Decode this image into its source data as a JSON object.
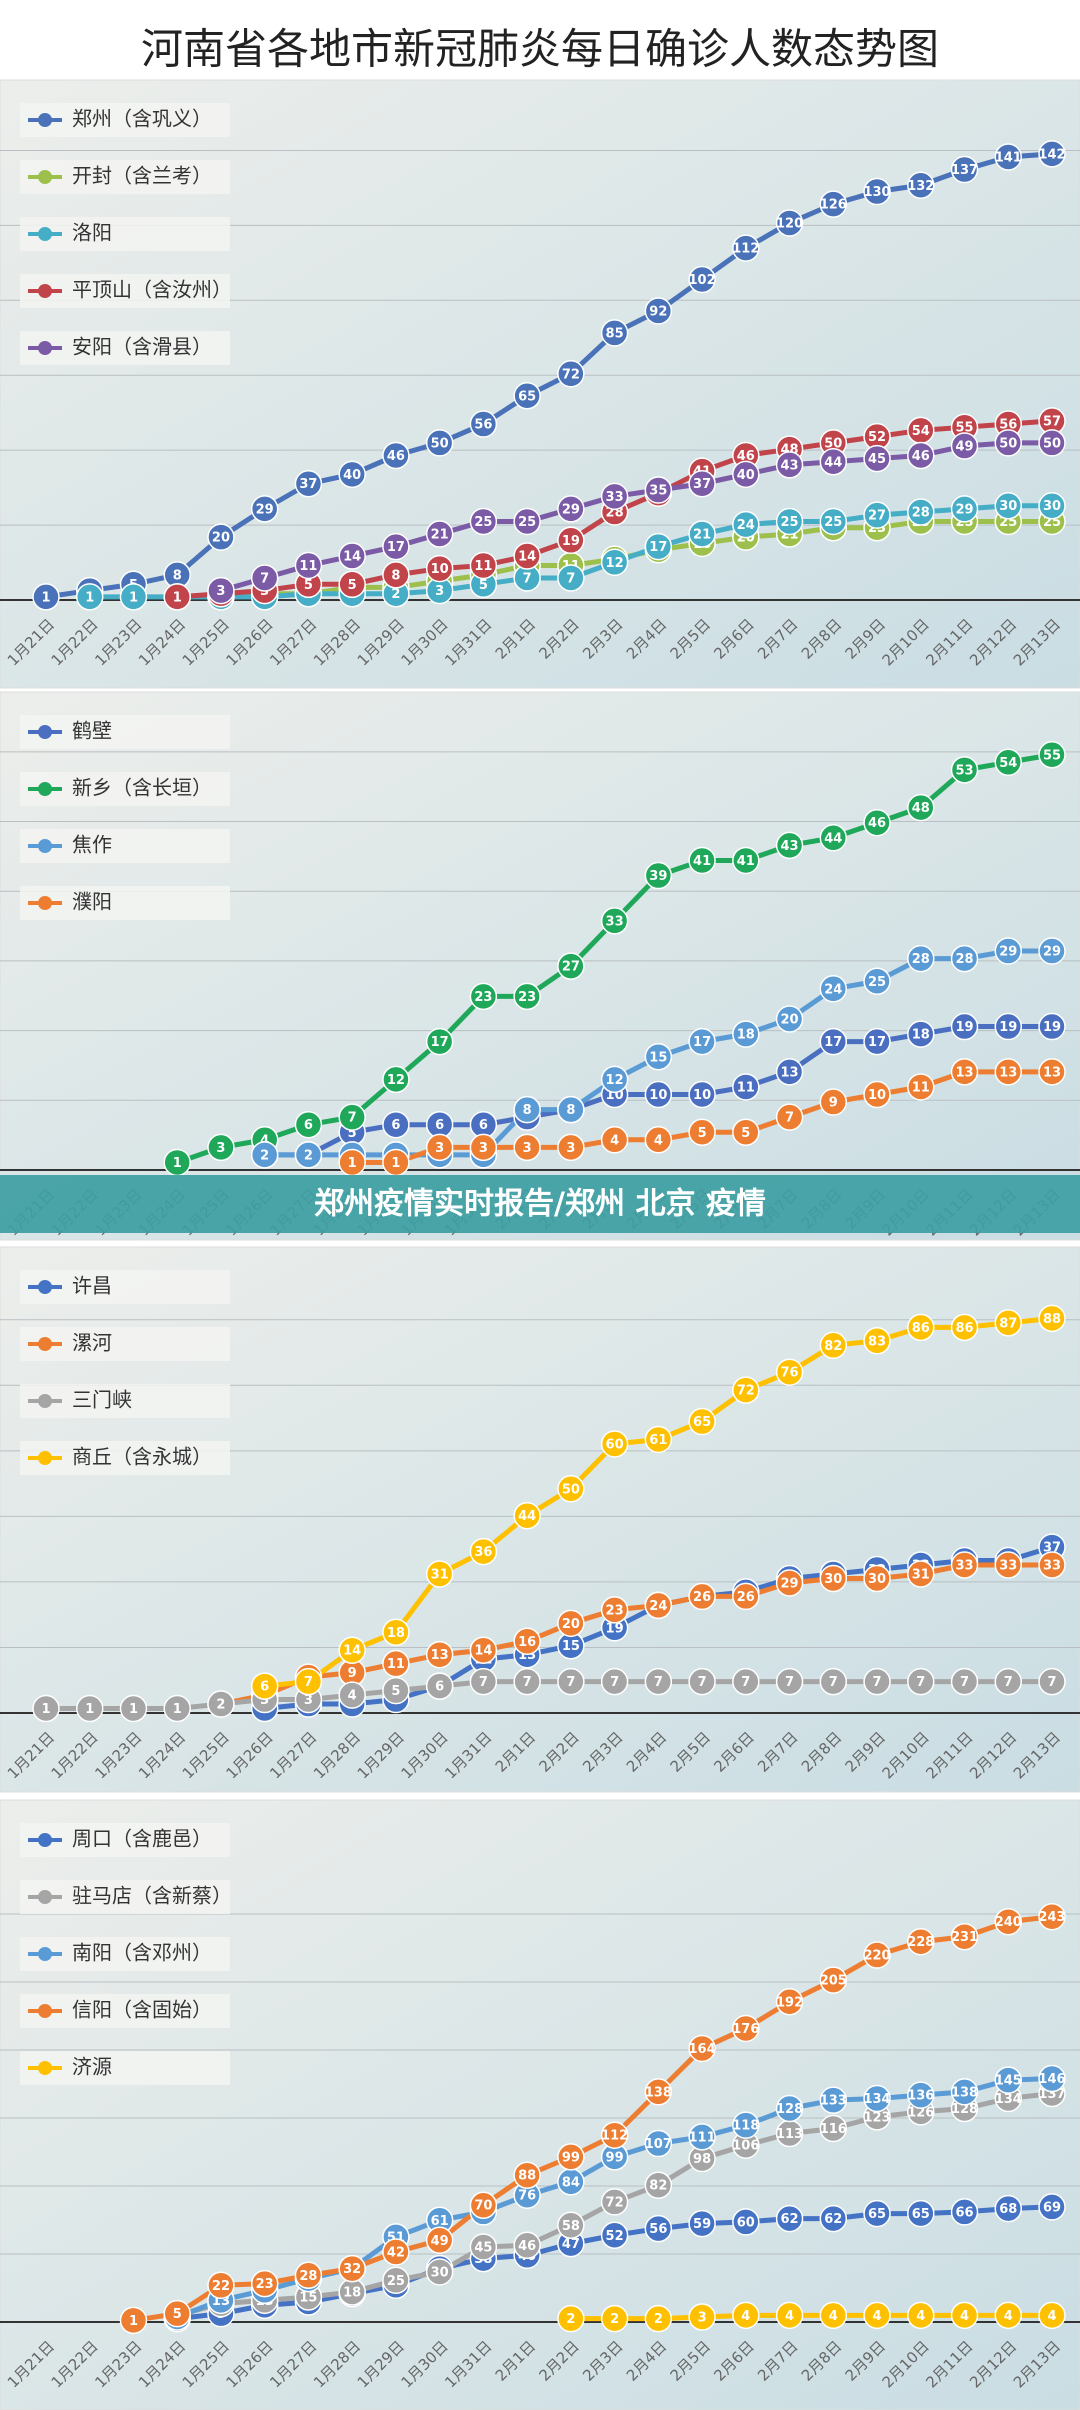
{
  "page_title": "河南省各地市新冠肺炎每日确诊人数态势图",
  "banner": "郑州疫情实时报告/郑州 北京 疫情",
  "chart_data": [
    {
      "type": "line",
      "ylim": [
        0,
        155
      ],
      "categories": [
        "1月21日",
        "1月22日",
        "1月23日",
        "1月24日",
        "1月25日",
        "1月26日",
        "1月27日",
        "1月28日",
        "1月29日",
        "1月30日",
        "1月31日",
        "2月1日",
        "2月2日",
        "2月3日",
        "2月4日",
        "2月5日",
        "2月6日",
        "2月7日",
        "2月8日",
        "2月9日",
        "2月10日",
        "2月11日",
        "2月12日",
        "2月13日"
      ],
      "series": [
        {
          "name": "郑州（含巩义）",
          "color": "#4a72b8",
          "values": [
            1,
            3,
            5,
            8,
            20,
            29,
            37,
            40,
            46,
            50,
            56,
            65,
            72,
            85,
            92,
            102,
            112,
            120,
            126,
            130,
            132,
            137,
            141,
            142
          ]
        },
        {
          "name": "开封（含兰考）",
          "color": "#9dc04c",
          "values": [
            null,
            null,
            null,
            null,
            1,
            2,
            2,
            4,
            4,
            6,
            8,
            11,
            11,
            13,
            16,
            18,
            20,
            21,
            23,
            23,
            25,
            25,
            25,
            25
          ]
        },
        {
          "name": "洛阳",
          "color": "#45adc6",
          "values": [
            null,
            1,
            1,
            1,
            1,
            1,
            2,
            2,
            2,
            3,
            5,
            7,
            7,
            12,
            17,
            21,
            24,
            25,
            25,
            27,
            28,
            29,
            30,
            30
          ]
        },
        {
          "name": "平顶山（含汝州）",
          "color": "#c0444a",
          "values": [
            null,
            null,
            null,
            1,
            2,
            3,
            5,
            5,
            8,
            10,
            11,
            14,
            19,
            28,
            34,
            41,
            46,
            48,
            50,
            52,
            54,
            55,
            56,
            57
          ]
        },
        {
          "name": "安阳（含滑县）",
          "color": "#7b5aa6",
          "values": [
            null,
            null,
            null,
            null,
            3,
            7,
            11,
            14,
            17,
            21,
            25,
            25,
            29,
            33,
            35,
            37,
            40,
            43,
            44,
            45,
            46,
            49,
            50,
            50
          ]
        }
      ]
    },
    {
      "type": "line",
      "ylim": [
        0,
        60
      ],
      "categories": [
        "1月21日",
        "1月22日",
        "1月23日",
        "1月24日",
        "1月25日",
        "1月26日",
        "1月27日",
        "1月28日",
        "1月29日",
        "1月30日",
        "1月31日",
        "2月1日",
        "2月2日",
        "2月3日",
        "2月4日",
        "2月5日",
        "2月6日",
        "2月7日",
        "2月8日",
        "2月9日",
        "2月10日",
        "2月11日",
        "2月12日",
        "2月13日"
      ],
      "series": [
        {
          "name": "鹤壁",
          "color": "#4a6fc0",
          "values": [
            null,
            null,
            null,
            null,
            null,
            2,
            2,
            5,
            6,
            6,
            6,
            7,
            8,
            10,
            10,
            10,
            11,
            13,
            17,
            17,
            18,
            19,
            19,
            19
          ]
        },
        {
          "name": "新乡（含长垣）",
          "color": "#1fa85a",
          "values": [
            null,
            null,
            null,
            1,
            3,
            4,
            6,
            7,
            12,
            17,
            23,
            23,
            27,
            33,
            39,
            41,
            41,
            43,
            44,
            46,
            48,
            53,
            54,
            55
          ]
        },
        {
          "name": "焦作",
          "color": "#5b9bd5",
          "values": [
            null,
            null,
            null,
            null,
            null,
            2,
            2,
            2,
            2,
            2,
            2,
            8,
            8,
            12,
            15,
            17,
            18,
            20,
            24,
            25,
            28,
            28,
            29,
            29
          ]
        },
        {
          "name": "濮阳",
          "color": "#ed7d31",
          "values": [
            null,
            null,
            null,
            null,
            null,
            null,
            null,
            1,
            1,
            3,
            3,
            3,
            3,
            4,
            4,
            5,
            5,
            7,
            9,
            10,
            11,
            13,
            13,
            13
          ]
        }
      ]
    },
    {
      "type": "line",
      "ylim": [
        0,
        95
      ],
      "categories": [
        "1月21日",
        "1月22日",
        "1月23日",
        "1月24日",
        "1月25日",
        "1月26日",
        "1月27日",
        "1月28日",
        "1月29日",
        "1月30日",
        "1月31日",
        "2月1日",
        "2月2日",
        "2月3日",
        "2月4日",
        "2月5日",
        "2月6日",
        "2月7日",
        "2月8日",
        "2月9日",
        "2月10日",
        "2月11日",
        "2月12日",
        "2月13日"
      ],
      "series": [
        {
          "name": "许昌",
          "color": "#4472c4",
          "values": [
            null,
            null,
            null,
            null,
            null,
            1,
            2,
            2,
            3,
            6,
            12,
            13,
            15,
            19,
            24,
            26,
            27,
            30,
            31,
            32,
            33,
            34,
            34,
            37
          ]
        },
        {
          "name": "漯河",
          "color": "#ed7d31",
          "values": [
            null,
            null,
            null,
            null,
            2,
            4,
            8,
            9,
            11,
            13,
            14,
            16,
            20,
            23,
            24,
            26,
            26,
            29,
            30,
            30,
            31,
            33,
            33,
            33
          ]
        },
        {
          "name": "三门峡",
          "color": "#a5a5a5",
          "values": [
            1,
            1,
            1,
            1,
            2,
            3,
            3,
            4,
            5,
            6,
            7,
            7,
            7,
            7,
            7,
            7,
            7,
            7,
            7,
            7,
            7,
            7,
            7,
            7
          ]
        },
        {
          "name": "商丘（含永城）",
          "color": "#ffc000",
          "values": [
            null,
            null,
            null,
            null,
            null,
            6,
            7,
            14,
            18,
            31,
            36,
            44,
            50,
            60,
            61,
            65,
            72,
            76,
            82,
            83,
            86,
            86,
            87,
            88
          ]
        }
      ]
    },
    {
      "type": "line",
      "ylim": [
        0,
        265
      ],
      "categories": [
        "1月21日",
        "1月22日",
        "1月23日",
        "1月24日",
        "1月25日",
        "1月26日",
        "1月27日",
        "1月28日",
        "1月29日",
        "1月30日",
        "1月31日",
        "2月1日",
        "2月2日",
        "2月3日",
        "2月4日",
        "2月5日",
        "2月6日",
        "2月7日",
        "2月8日",
        "2月9日",
        "2月10日",
        "2月11日",
        "2月12日",
        "2月13日"
      ],
      "series": [
        {
          "name": "周口（含鹿邑）",
          "color": "#4472c4",
          "values": [
            null,
            null,
            null,
            2,
            5,
            10,
            12,
            17,
            22,
            32,
            38,
            40,
            47,
            52,
            56,
            59,
            60,
            62,
            62,
            65,
            65,
            66,
            68,
            69
          ]
        },
        {
          "name": "驻马店（含新蔡）",
          "color": "#a5a5a5",
          "values": [
            null,
            null,
            null,
            4,
            11,
            13,
            15,
            18,
            25,
            30,
            45,
            46,
            58,
            72,
            82,
            98,
            106,
            113,
            116,
            123,
            126,
            128,
            134,
            137
          ]
        },
        {
          "name": "南阳（含邓州）",
          "color": "#5b9bd5",
          "values": [
            null,
            null,
            null,
            3,
            13,
            19,
            26,
            32,
            51,
            61,
            66,
            76,
            84,
            99,
            107,
            111,
            118,
            128,
            133,
            134,
            136,
            138,
            145,
            146
          ]
        },
        {
          "name": "信阳（含固始）",
          "color": "#ed7d31",
          "values": [
            null,
            null,
            1,
            5,
            22,
            23,
            28,
            32,
            42,
            49,
            70,
            88,
            99,
            112,
            138,
            164,
            176,
            192,
            205,
            220,
            228,
            231,
            240,
            243
          ]
        },
        {
          "name": "济源",
          "color": "#ffc000",
          "values": [
            null,
            null,
            null,
            null,
            null,
            null,
            null,
            null,
            null,
            null,
            null,
            null,
            2,
            2,
            2,
            3,
            4,
            4,
            4,
            4,
            4,
            4,
            4,
            4
          ]
        }
      ]
    }
  ]
}
